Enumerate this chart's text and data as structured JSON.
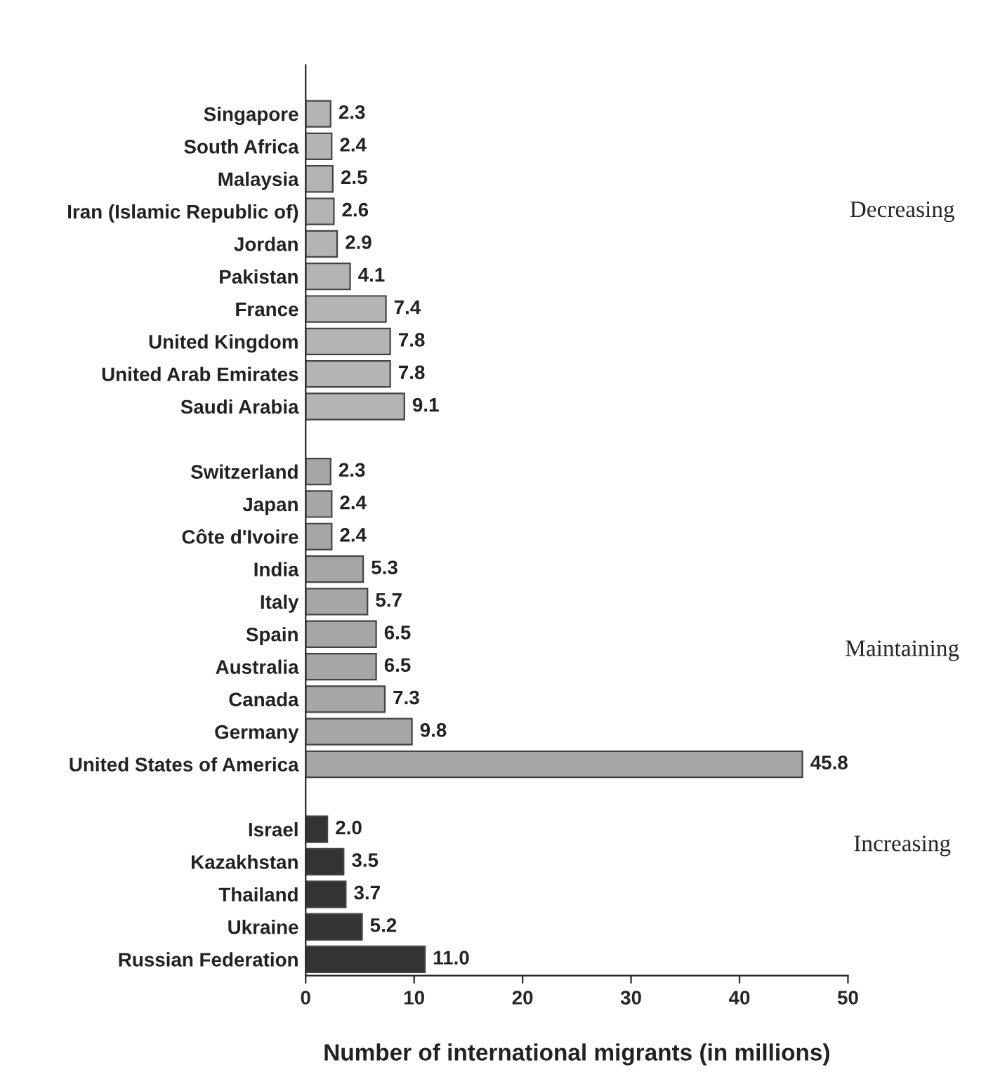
{
  "chart_data": {
    "type": "bar",
    "orientation": "horizontal",
    "xlabel": "Number of international migrants (in millions)",
    "categories": [
      "Singapore",
      "South Africa",
      "Malaysia",
      "Iran (Islamic Republic of)",
      "Jordan",
      "Pakistan",
      "France",
      "United Kingdom",
      "United Arab Emirates",
      "Saudi Arabia",
      null,
      "Switzerland",
      "Japan",
      "Côte d'Ivoire",
      "India",
      "Italy",
      "Spain",
      "Australia",
      "Canada",
      "Germany",
      "United States of America",
      null,
      "Israel",
      "Kazakhstan",
      "Thailand",
      "Ukraine",
      "Russian Federation"
    ],
    "values": [
      2.3,
      2.4,
      2.5,
      2.6,
      2.9,
      4.1,
      7.4,
      7.8,
      7.8,
      9.1,
      null,
      2.3,
      2.4,
      2.4,
      5.3,
      5.7,
      6.5,
      6.5,
      7.3,
      9.8,
      45.8,
      null,
      2.0,
      3.5,
      3.7,
      5.2,
      11.0
    ],
    "colors": [
      "#b4b4b4",
      "#b4b4b4",
      "#b4b4b4",
      "#b4b4b4",
      "#b4b4b4",
      "#b4b4b4",
      "#b4b4b4",
      "#b4b4b4",
      "#b4b4b4",
      "#b4b4b4",
      null,
      "#a6a6a6",
      "#a6a6a6",
      "#a6a6a6",
      "#a6a6a6",
      "#a6a6a6",
      "#a6a6a6",
      "#a6a6a6",
      "#a6a6a6",
      "#a6a6a6",
      "#a6a6a6",
      null,
      "#333333",
      "#333333",
      "#333333",
      "#333333",
      "#333333"
    ],
    "value_labels": [
      "2.3",
      "2.4",
      "2.5",
      "2.6",
      "2.9",
      "4.1",
      "7.4",
      "7.8",
      "7.8",
      "9.1",
      null,
      "2.3",
      "2.4",
      "2.4",
      "5.3",
      "5.7",
      "6.5",
      "6.5",
      "7.3",
      "9.8",
      "45.8",
      null,
      "2.0",
      "3.5",
      "3.7",
      "5.2",
      "11.0"
    ],
    "xlim": [
      0,
      50
    ],
    "xticks": [
      0,
      10,
      20,
      30,
      40,
      50
    ],
    "annotations": [
      "Decreasing",
      "Maintaining",
      "Increasing"
    ],
    "grid": false,
    "legend": false
  }
}
